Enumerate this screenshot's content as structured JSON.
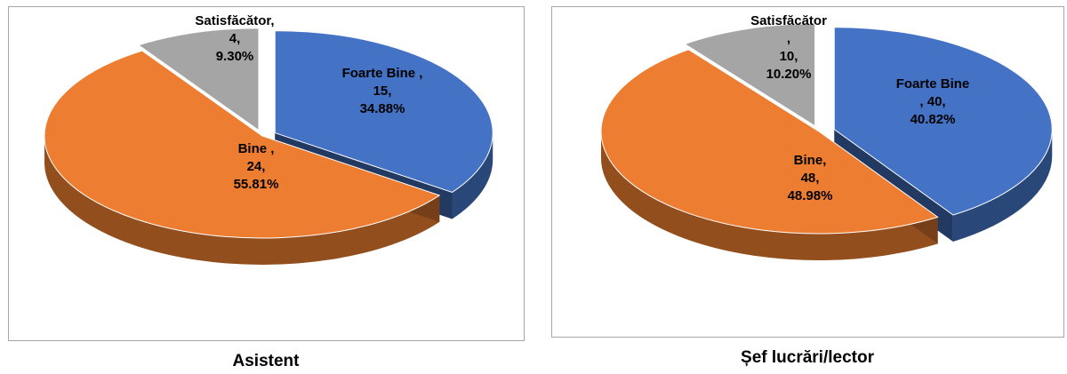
{
  "colors": {
    "Foarte Bine": "#4472c4",
    "Bine": "#ed7d31",
    "Satisfăcător": "#a5a5a5"
  },
  "chart_data": [
    {
      "type": "pie",
      "title": "Asistent",
      "slices": [
        {
          "name": "Foarte Bine",
          "value": 15,
          "percent": "34.88%",
          "label": [
            "Foarte Bine ,",
            "15,",
            "34.88%"
          ]
        },
        {
          "name": "Bine",
          "value": 24,
          "percent": "55.81%",
          "label": [
            "Bine ,",
            "24,",
            "55.81%"
          ]
        },
        {
          "name": "Satisfăcător",
          "value": 4,
          "percent": "9.30%",
          "label": [
            "Satisfăcător,",
            "4,",
            "9.30%"
          ]
        }
      ]
    },
    {
      "type": "pie",
      "title": "Șef lucrări/lector",
      "slices": [
        {
          "name": "Foarte Bine",
          "value": 40,
          "percent": "40.82%",
          "label": [
            "Foarte Bine",
            ", 40,",
            "40.82%"
          ]
        },
        {
          "name": "Bine",
          "value": 48,
          "percent": "48.98%",
          "label": [
            "Bine,",
            "48,",
            "48.98%"
          ]
        },
        {
          "name": "Satisfăcător",
          "value": 10,
          "percent": "10.20%",
          "label": [
            "Satisfăcător",
            ",",
            "10,",
            "10.20%"
          ]
        }
      ]
    }
  ]
}
